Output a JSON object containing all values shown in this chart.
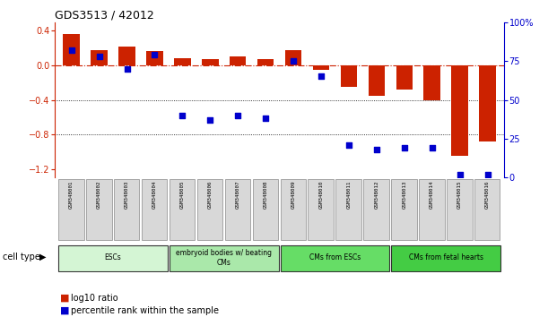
{
  "title": "GDS3513 / 42012",
  "samples": [
    "GSM348001",
    "GSM348002",
    "GSM348003",
    "GSM348004",
    "GSM348005",
    "GSM348006",
    "GSM348007",
    "GSM348008",
    "GSM348009",
    "GSM348010",
    "GSM348011",
    "GSM348012",
    "GSM348013",
    "GSM348014",
    "GSM348015",
    "GSM348016"
  ],
  "log10_ratio": [
    0.36,
    0.18,
    0.22,
    0.17,
    0.08,
    0.07,
    0.1,
    0.07,
    0.18,
    -0.05,
    -0.25,
    -0.35,
    -0.28,
    -0.4,
    -1.05,
    -0.88
  ],
  "percentile_rank": [
    82,
    78,
    70,
    79,
    40,
    37,
    40,
    38,
    75,
    65,
    21,
    18,
    19,
    19,
    2,
    2
  ],
  "cell_type_groups": [
    {
      "label": "ESCs",
      "start": 0,
      "end": 3,
      "color": "#d4f5d4"
    },
    {
      "label": "embryoid bodies w/ beating\nCMs",
      "start": 4,
      "end": 7,
      "color": "#aae8aa"
    },
    {
      "label": "CMs from ESCs",
      "start": 8,
      "end": 11,
      "color": "#66dd66"
    },
    {
      "label": "CMs from fetal hearts",
      "start": 12,
      "end": 15,
      "color": "#44cc44"
    }
  ],
  "bar_color": "#cc2200",
  "dot_color": "#0000cc",
  "zero_line_color": "#cc2200",
  "ylim_left": [
    -1.3,
    0.5
  ],
  "ylim_right": [
    -32.5,
    125
  ],
  "yticks_left": [
    -1.2,
    -0.8,
    -0.4,
    0.0,
    0.4
  ],
  "yticks_right": [
    0,
    25,
    50,
    75,
    100
  ],
  "dotted_yticks": [
    -0.4,
    -0.8
  ],
  "background_color": "#ffffff"
}
